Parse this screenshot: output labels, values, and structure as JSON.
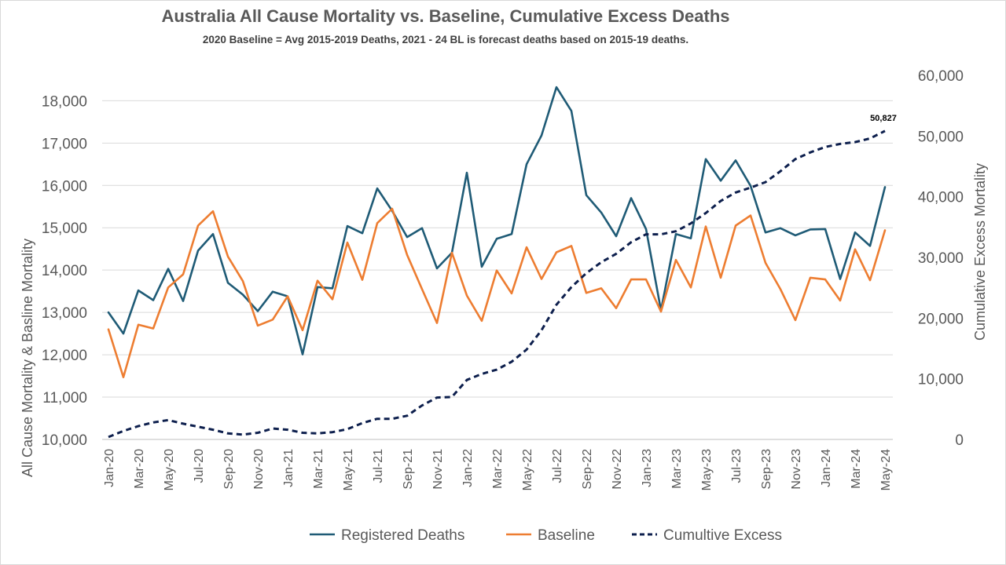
{
  "chart_data": {
    "type": "line",
    "title": "Australia All Cause Mortality vs. Baseline, Cumulative Excess Deaths",
    "subtitle": "2020 Baseline = Avg 2015-2019 Deaths, 2021 - 24 BL is forecast deaths based on 2015-19 deaths.",
    "ylabel_left": "All Cause Mortality & Basline Mortality",
    "ylabel_right": "Cumulative Excess Mortality",
    "ylim_left": [
      10000,
      18600
    ],
    "ylim_right": [
      0,
      60000
    ],
    "yticks_left": [
      "10,000",
      "11,000",
      "12,000",
      "13,000",
      "14,000",
      "15,000",
      "16,000",
      "17,000",
      "18,000"
    ],
    "yticks_right": [
      "0",
      "10,000",
      "20,000",
      "30,000",
      "40,000",
      "50,000",
      "60,000"
    ],
    "x": [
      "Jan-20",
      "Feb-20",
      "Mar-20",
      "Apr-20",
      "May-20",
      "Jun-20",
      "Jul-20",
      "Aug-20",
      "Sep-20",
      "Oct-20",
      "Nov-20",
      "Dec-20",
      "Jan-21",
      "Feb-21",
      "Mar-21",
      "Apr-21",
      "May-21",
      "Jun-21",
      "Jul-21",
      "Aug-21",
      "Sep-21",
      "Oct-21",
      "Nov-21",
      "Dec-21",
      "Jan-22",
      "Feb-22",
      "Mar-22",
      "Apr-22",
      "May-22",
      "Jun-22",
      "Jul-22",
      "Aug-22",
      "Sep-22",
      "Oct-22",
      "Nov-22",
      "Dec-22",
      "Jan-23",
      "Feb-23",
      "Mar-23",
      "Apr-23",
      "May-23",
      "Jun-23",
      "Jul-23",
      "Aug-23",
      "Sep-23",
      "Oct-23",
      "Nov-23",
      "Dec-23",
      "Jan-24",
      "Feb-24",
      "Mar-24",
      "Apr-24",
      "May-24"
    ],
    "x_tick_labels": [
      "Jan-20",
      "Mar-20",
      "May-20",
      "Jul-20",
      "Sep-20",
      "Nov-20",
      "Jan-21",
      "Mar-21",
      "May-21",
      "Jul-21",
      "Sep-21",
      "Nov-21",
      "Jan-22",
      "Mar-22",
      "May-22",
      "Jul-22",
      "Sep-22",
      "Nov-22",
      "Jan-23",
      "Mar-23",
      "May-23",
      "Jul-23",
      "Sep-23",
      "Nov-23",
      "Jan-24",
      "Mar-24",
      "May-24"
    ],
    "series": [
      {
        "name": "Registered Deaths",
        "axis": "left",
        "color": "#1f5b76",
        "style": "solid",
        "values": [
          13000,
          12500,
          13520,
          13290,
          14030,
          13270,
          14460,
          14850,
          13700,
          13420,
          13030,
          13490,
          13380,
          12010,
          13600,
          13570,
          15040,
          14870,
          15930,
          15400,
          14780,
          14990,
          14040,
          14410,
          16300,
          14080,
          14740,
          14850,
          16500,
          17180,
          18320,
          17760,
          15770,
          15360,
          14800,
          15700,
          14970,
          13050,
          14850,
          14750,
          16620,
          16110,
          16590,
          15990,
          14890,
          14990,
          14820,
          14960,
          14970,
          13790,
          14890,
          14570,
          15960
        ]
      },
      {
        "name": "Baseline",
        "axis": "left",
        "color": "#ed7d31",
        "style": "solid",
        "values": [
          12600,
          11470,
          12710,
          12620,
          13590,
          13900,
          15050,
          15390,
          14320,
          13740,
          12690,
          12830,
          13380,
          12580,
          13750,
          13310,
          14650,
          13770,
          15110,
          15450,
          14360,
          13550,
          12750,
          14410,
          13400,
          12800,
          13990,
          13450,
          14540,
          13790,
          14420,
          14570,
          13460,
          13570,
          13100,
          13780,
          13780,
          13020,
          14240,
          13590,
          15030,
          13820,
          15050,
          15290,
          14170,
          13550,
          12820,
          13820,
          13780,
          13280,
          14490,
          13760,
          14940
        ]
      },
      {
        "name": "Cumultive Excess",
        "axis": "right",
        "color": "#0d1f4d",
        "style": "dashed",
        "values": [
          400,
          1400,
          2200,
          2800,
          3200,
          2600,
          2100,
          1600,
          1000,
          800,
          1100,
          1800,
          1600,
          1100,
          1000,
          1200,
          1700,
          2700,
          3400,
          3400,
          3900,
          5600,
          6900,
          7000,
          9800,
          10800,
          11500,
          12800,
          14800,
          18000,
          22200,
          25100,
          27400,
          29200,
          30600,
          32500,
          33800,
          33800,
          34300,
          35600,
          37300,
          39300,
          40700,
          41500,
          42400,
          44200,
          46200,
          47300,
          48200,
          48700,
          49000,
          49600,
          50827
        ]
      }
    ],
    "annotations": [
      {
        "text": "50,827",
        "series": "Cumultive Excess",
        "point": "May-24"
      }
    ],
    "grid": "horizontal",
    "legend_position": "bottom"
  }
}
